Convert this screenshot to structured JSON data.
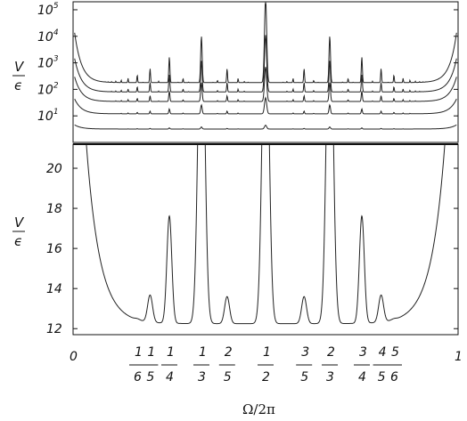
{
  "chart_data": [
    {
      "type": "line",
      "panel": "top",
      "ylabel_num": "V",
      "ylabel_den": "ϵ",
      "y_scale": "log",
      "ylim": [
        1,
        200000
      ],
      "xlim": [
        0,
        1
      ],
      "y_ticks": [
        {
          "value": 10,
          "base": "10",
          "exp": "1"
        },
        {
          "value": 100,
          "base": "10",
          "exp": "2"
        },
        {
          "value": 1000,
          "base": "10",
          "exp": "3"
        },
        {
          "value": 10000,
          "base": "10",
          "exp": "4"
        },
        {
          "value": 100000,
          "base": "10",
          "exp": "5"
        }
      ],
      "series": [
        {
          "baseline": 3.2,
          "edge": 5,
          "depth": 1
        },
        {
          "baseline": 12,
          "edge": 60,
          "depth": 2
        },
        {
          "baseline": 35,
          "edge": 500,
          "depth": 3
        },
        {
          "baseline": 80,
          "edge": 3000,
          "depth": 4
        },
        {
          "baseline": 180,
          "edge": 40000,
          "depth": 6
        }
      ]
    },
    {
      "type": "line",
      "panel": "bottom",
      "ylabel_num": "V",
      "ylabel_den": "ϵ",
      "ylim": [
        11.7,
        21.2
      ],
      "xlim": [
        0,
        1
      ],
      "y_ticks": [
        {
          "value": 12,
          "label": "12"
        },
        {
          "value": 14,
          "label": "14"
        },
        {
          "value": 16,
          "label": "16"
        },
        {
          "value": 18,
          "label": "18"
        },
        {
          "value": 20,
          "label": "20"
        }
      ],
      "resonances": [
        {
          "x": 0.1667,
          "height": 12.3
        },
        {
          "x": 0.2,
          "height": 13.6
        },
        {
          "x": 0.25,
          "height": 17.6
        },
        {
          "x": 0.3333,
          "height": 30
        },
        {
          "x": 0.4,
          "height": 13.6
        },
        {
          "x": 0.5,
          "height": 30
        },
        {
          "x": 0.6,
          "height": 13.6
        },
        {
          "x": 0.6667,
          "height": 30
        },
        {
          "x": 0.75,
          "height": 17.6
        },
        {
          "x": 0.8,
          "height": 13.6
        },
        {
          "x": 0.8333,
          "height": 12.3
        }
      ],
      "floor": 12.25,
      "x_ticks": [
        {
          "value": 0,
          "label": "0"
        },
        {
          "value": 0.1667,
          "num": "1",
          "den": "6"
        },
        {
          "value": 0.2,
          "num": "1",
          "den": "5"
        },
        {
          "value": 0.25,
          "num": "1",
          "den": "4"
        },
        {
          "value": 0.3333,
          "num": "1",
          "den": "3"
        },
        {
          "value": 0.4,
          "num": "2",
          "den": "5"
        },
        {
          "value": 0.5,
          "num": "1",
          "den": "2"
        },
        {
          "value": 0.6,
          "num": "3",
          "den": "5"
        },
        {
          "value": 0.6667,
          "num": "2",
          "den": "3"
        },
        {
          "value": 0.75,
          "num": "3",
          "den": "4"
        },
        {
          "value": 0.8,
          "num": "4",
          "den": "5"
        },
        {
          "value": 0.8333,
          "num": "5",
          "den": "6"
        },
        {
          "value": 1,
          "label": "1"
        }
      ],
      "xlabel": "Ω/2π"
    }
  ]
}
